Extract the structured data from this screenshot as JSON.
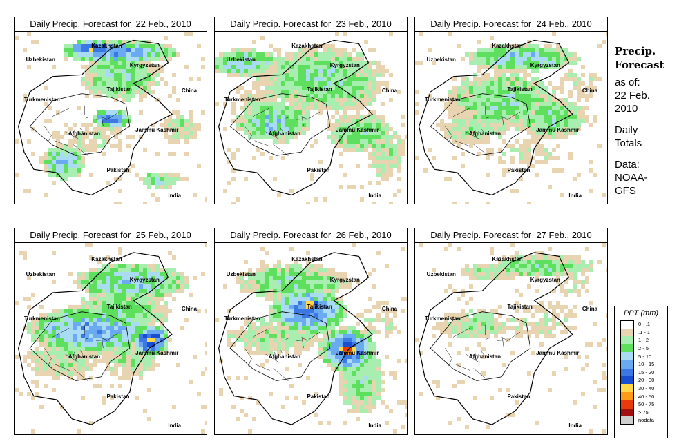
{
  "panels": [
    {
      "title": "Daily Precip. Forecast for  22 Feb., 2010"
    },
    {
      "title": "Daily Precip. Forecast for  23 Feb., 2010"
    },
    {
      "title": "Daily Precip. Forecast for  24 Feb., 2010"
    },
    {
      "title": "Daily Precip. Forecast for  25 Feb., 2010"
    },
    {
      "title": "Daily Precip. Forecast for  26 Feb., 2010"
    },
    {
      "title": "Daily Precip. Forecast for  27 Feb., 2010"
    }
  ],
  "map_labels": {
    "kazakhstan": "Kazakhstan",
    "uzbekistan": "Uzbekistan",
    "kyrgyzstan": "Kyrgyzstan",
    "tajikistan": "Tajikistan",
    "turkmenistan": "Turkmenistan",
    "china": "China",
    "afghanistan": "Afghanistan",
    "jammu_kashmir": "Jammu Kashmir",
    "pakistan": "Pakistan",
    "india": "India"
  },
  "side_panel": {
    "heading_line1": "Precip.",
    "heading_line2": "Forecast",
    "as_of_label": "as of:",
    "as_of_date_line1": "22 Feb.",
    "as_of_date_line2": "2010",
    "totals_line1": "Daily",
    "totals_line2": "Totals",
    "data_label": "Data:",
    "data_source_line1": "NOAA-",
    "data_source_line2": "GFS"
  },
  "legend": {
    "title": "PPT (mm)",
    "items": [
      {
        "label": "0 - .1",
        "color": "#ffffff"
      },
      {
        "label": ".1 - 1",
        "color": "#e8d4b0"
      },
      {
        "label": "1 - 2",
        "color": "#a8eeb0"
      },
      {
        "label": "2 - 5",
        "color": "#5ee05e"
      },
      {
        "label": "5 - 10",
        "color": "#a9dcf2"
      },
      {
        "label": "10 - 15",
        "color": "#6aaaf0"
      },
      {
        "label": "15 - 20",
        "color": "#3c78e4"
      },
      {
        "label": "20 - 30",
        "color": "#1a4ed2"
      },
      {
        "label": "30 - 40",
        "color": "#ffd84a"
      },
      {
        "label": "40 - 50",
        "color": "#ff9a18"
      },
      {
        "label": "50 - 75",
        "color": "#e83a0a"
      },
      {
        "label": "> 75",
        "color": "#a01010"
      },
      {
        "label": "nodata",
        "color": "#cfcfcf"
      }
    ]
  }
}
